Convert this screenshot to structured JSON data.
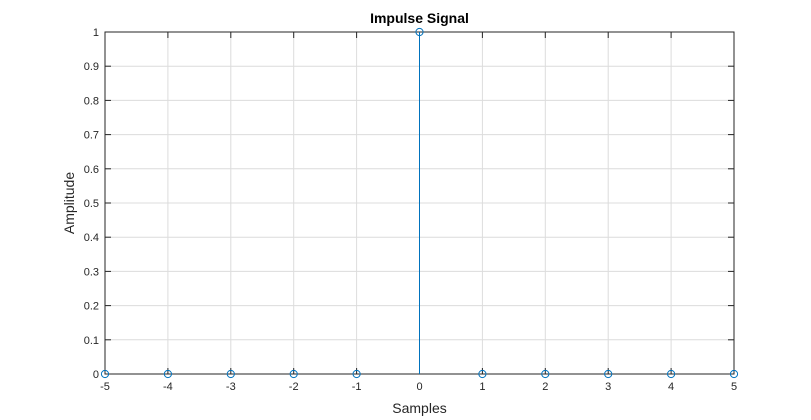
{
  "chart_data": {
    "type": "stem",
    "title": "Impulse Signal",
    "xlabel": "Samples",
    "ylabel": "Amplitude",
    "x": [
      -5,
      -4,
      -3,
      -2,
      -1,
      0,
      1,
      2,
      3,
      4,
      5
    ],
    "y": [
      0,
      0,
      0,
      0,
      0,
      1,
      0,
      0,
      0,
      0,
      0
    ],
    "xlim": [
      -5,
      5
    ],
    "ylim": [
      0,
      1
    ],
    "xticks": [
      -5,
      -4,
      -3,
      -2,
      -1,
      0,
      1,
      2,
      3,
      4,
      5
    ],
    "yticks": [
      0,
      0.1,
      0.2,
      0.3,
      0.4,
      0.5,
      0.6,
      0.7,
      0.8,
      0.9,
      1
    ],
    "grid": true,
    "marker": "circle-open",
    "color": "#0072BD"
  }
}
